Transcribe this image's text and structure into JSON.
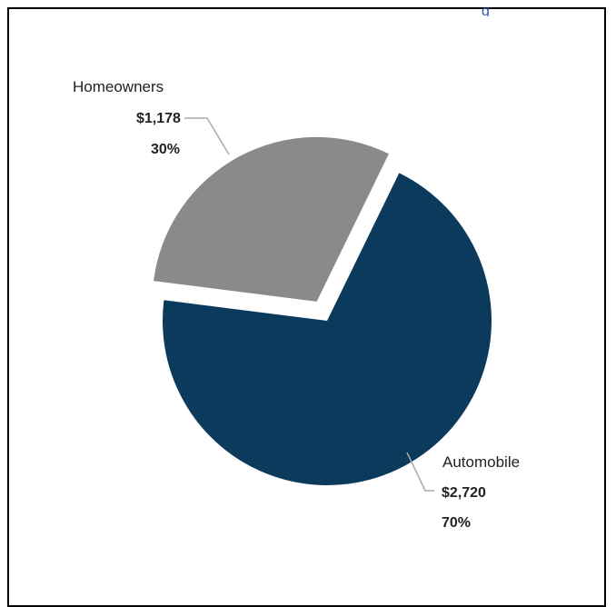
{
  "chart_data": {
    "type": "pie",
    "title": "",
    "categories": [
      "Automobile",
      "Homeowners"
    ],
    "values": [
      2720,
      1178
    ],
    "value_labels": [
      "$2,720",
      "$1,178"
    ],
    "percent_labels": [
      "70%",
      "30%"
    ],
    "colors": [
      "#0b3a5d",
      "#8a8a8a"
    ],
    "exploded": "Homeowners",
    "legend": "none"
  },
  "header_fragment": "g"
}
